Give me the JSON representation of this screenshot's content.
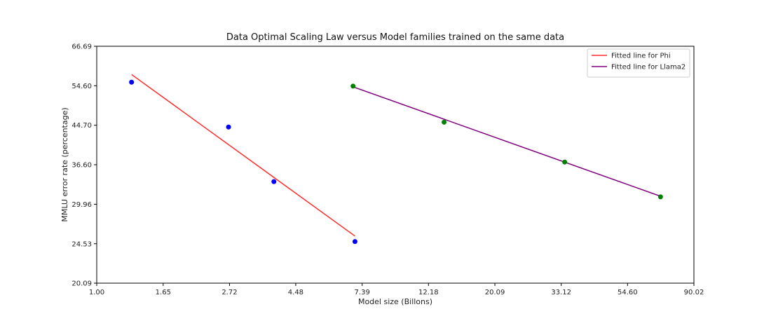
{
  "chart_data": {
    "type": "scatter",
    "title": "Data Optimal Scaling Law versus Model families trained on the same data",
    "xlabel": "Model size (Billons)",
    "ylabel": "MMLU error rate (percentage)",
    "x_scale": "log",
    "y_scale": "log",
    "xlim": [
      1.0,
      90.02
    ],
    "ylim": [
      20.09,
      66.69
    ],
    "x_ticks": [
      1.0,
      1.65,
      2.72,
      4.48,
      7.39,
      12.18,
      20.09,
      33.12,
      54.6,
      90.02
    ],
    "x_tick_labels": [
      "1.00",
      "1.65",
      "2.72",
      "4.48",
      "7.39",
      "12.18",
      "20.09",
      "33.12",
      "54.60",
      "90.02"
    ],
    "y_ticks": [
      20.09,
      24.53,
      29.96,
      36.6,
      44.7,
      54.6,
      66.69
    ],
    "y_tick_labels": [
      "20.09",
      "24.53",
      "29.96",
      "36.60",
      "44.70",
      "54.60",
      "66.69"
    ],
    "grid": false,
    "legend_position": "top-right",
    "series": [
      {
        "kind": "points",
        "color": "#0000ff",
        "x": [
          1.3,
          2.7,
          3.8,
          7.0
        ],
        "y": [
          55.6,
          44.3,
          33.6,
          24.8
        ]
      },
      {
        "kind": "line",
        "name": "Fitted line for Phi",
        "color": "#ff2a2a",
        "x": [
          1.3,
          7.0
        ],
        "y": [
          57.8,
          25.5
        ]
      },
      {
        "kind": "points",
        "color": "#008000",
        "x": [
          6.9,
          13.7,
          34.0,
          70.0
        ],
        "y": [
          54.5,
          45.4,
          37.1,
          31.1
        ]
      },
      {
        "kind": "line",
        "name": "Fitted line for Llama2",
        "color": "#800080",
        "x": [
          6.9,
          70.0
        ],
        "y": [
          54.3,
          31.2
        ]
      }
    ]
  }
}
